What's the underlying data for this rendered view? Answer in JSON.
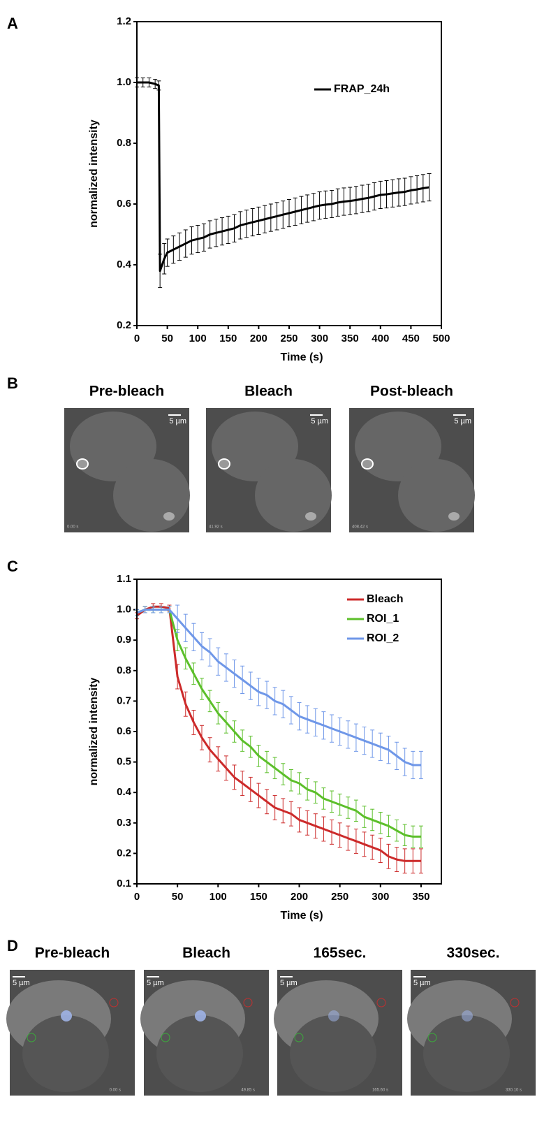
{
  "chart_data": [
    {
      "type": "line",
      "panel_label": "A",
      "xlabel": "Time (s)",
      "ylabel": "normalized intensity",
      "xlim": [
        0,
        500
      ],
      "xticks": [
        0,
        50,
        100,
        150,
        200,
        250,
        300,
        350,
        400,
        450,
        500
      ],
      "ylim": [
        0.2,
        1.2
      ],
      "yticks": [
        0.2,
        0.4,
        0.6,
        0.8,
        {
          "value": 1,
          "label": "1.0"
        },
        1.2
      ],
      "legend": "upper right",
      "grid": false,
      "x": [
        0,
        10,
        20,
        30,
        36,
        38,
        45,
        50,
        60,
        70,
        80,
        90,
        100,
        110,
        120,
        130,
        140,
        150,
        160,
        170,
        180,
        190,
        200,
        210,
        220,
        230,
        240,
        250,
        260,
        270,
        280,
        290,
        300,
        310,
        320,
        330,
        340,
        350,
        360,
        370,
        380,
        390,
        400,
        410,
        420,
        430,
        440,
        450,
        460,
        470,
        480
      ],
      "series": [
        {
          "name": "FRAP_24h",
          "color": "#000000",
          "values": [
            1.0,
            1.0,
            1.0,
            0.995,
            0.99,
            0.38,
            0.42,
            0.44,
            0.45,
            0.46,
            0.47,
            0.48,
            0.485,
            0.49,
            0.5,
            0.505,
            0.51,
            0.515,
            0.52,
            0.53,
            0.535,
            0.54,
            0.545,
            0.55,
            0.555,
            0.56,
            0.565,
            0.57,
            0.575,
            0.58,
            0.585,
            0.59,
            0.595,
            0.598,
            0.6,
            0.605,
            0.608,
            0.61,
            0.613,
            0.617,
            0.62,
            0.625,
            0.63,
            0.632,
            0.635,
            0.638,
            0.64,
            0.645,
            0.648,
            0.652,
            0.655
          ],
          "errors": [
            0.015,
            0.015,
            0.015,
            0.015,
            0.015,
            0.055,
            0.05,
            0.045,
            0.045,
            0.045,
            0.045,
            0.045,
            0.045,
            0.045,
            0.045,
            0.045,
            0.045,
            0.045,
            0.045,
            0.045,
            0.045,
            0.045,
            0.045,
            0.045,
            0.045,
            0.045,
            0.045,
            0.045,
            0.045,
            0.045,
            0.045,
            0.045,
            0.045,
            0.045,
            0.045,
            0.045,
            0.045,
            0.045,
            0.045,
            0.045,
            0.045,
            0.045,
            0.045,
            0.045,
            0.045,
            0.045,
            0.045,
            0.045,
            0.045,
            0.045,
            0.045
          ]
        }
      ]
    },
    {
      "type": "line",
      "panel_label": "C",
      "xlabel": "Time (s)",
      "ylabel": "normalized intensity",
      "xlim": [
        0,
        375
      ],
      "xticks": [
        0,
        50,
        100,
        150,
        200,
        250,
        300,
        350
      ],
      "ylim": [
        0.1,
        1.1
      ],
      "yticks": [
        0.1,
        0.2,
        0.3,
        0.4,
        0.5,
        0.6,
        0.7,
        0.8,
        0.9,
        {
          "value": 1,
          "label": "1.0"
        },
        1.1
      ],
      "legend": "upper right",
      "grid": false,
      "x": [
        0,
        10,
        20,
        30,
        40,
        50,
        60,
        70,
        80,
        90,
        100,
        110,
        120,
        130,
        140,
        150,
        160,
        170,
        180,
        190,
        200,
        210,
        220,
        230,
        240,
        250,
        260,
        270,
        280,
        290,
        300,
        310,
        320,
        330,
        340,
        350
      ],
      "series": [
        {
          "name": "Bleach",
          "color": "#cc2a2a",
          "values": [
            0.98,
            1.0,
            1.01,
            1.01,
            1.005,
            0.78,
            0.69,
            0.63,
            0.58,
            0.54,
            0.51,
            0.48,
            0.45,
            0.43,
            0.41,
            0.39,
            0.37,
            0.35,
            0.34,
            0.33,
            0.31,
            0.3,
            0.29,
            0.28,
            0.27,
            0.26,
            0.25,
            0.24,
            0.23,
            0.22,
            0.21,
            0.19,
            0.18,
            0.175,
            0.175,
            0.175
          ],
          "errors": [
            0.01,
            0.01,
            0.01,
            0.01,
            0.01,
            0.04,
            0.04,
            0.04,
            0.04,
            0.04,
            0.04,
            0.04,
            0.04,
            0.04,
            0.04,
            0.04,
            0.04,
            0.04,
            0.04,
            0.04,
            0.04,
            0.04,
            0.04,
            0.04,
            0.04,
            0.04,
            0.04,
            0.04,
            0.04,
            0.04,
            0.04,
            0.04,
            0.04,
            0.04,
            0.04,
            0.04
          ]
        },
        {
          "name": "ROI_1",
          "color": "#5cbf2a",
          "values": [
            0.99,
            1.0,
            1.0,
            1.0,
            1.0,
            0.9,
            0.84,
            0.79,
            0.74,
            0.7,
            0.66,
            0.63,
            0.6,
            0.57,
            0.55,
            0.52,
            0.5,
            0.48,
            0.46,
            0.44,
            0.43,
            0.41,
            0.4,
            0.38,
            0.37,
            0.36,
            0.35,
            0.34,
            0.32,
            0.31,
            0.3,
            0.29,
            0.275,
            0.26,
            0.255,
            0.255
          ],
          "errors": [
            0.01,
            0.01,
            0.01,
            0.01,
            0.01,
            0.035,
            0.035,
            0.035,
            0.035,
            0.035,
            0.035,
            0.035,
            0.035,
            0.035,
            0.035,
            0.035,
            0.035,
            0.035,
            0.035,
            0.035,
            0.035,
            0.035,
            0.035,
            0.035,
            0.035,
            0.035,
            0.035,
            0.035,
            0.035,
            0.035,
            0.035,
            0.035,
            0.035,
            0.035,
            0.035,
            0.035
          ]
        },
        {
          "name": "ROI_2",
          "color": "#6f97e8",
          "values": [
            0.99,
            1.0,
            1.0,
            1.0,
            1.0,
            0.97,
            0.94,
            0.91,
            0.88,
            0.86,
            0.83,
            0.81,
            0.79,
            0.77,
            0.75,
            0.73,
            0.72,
            0.7,
            0.69,
            0.67,
            0.65,
            0.64,
            0.63,
            0.62,
            0.61,
            0.6,
            0.59,
            0.58,
            0.57,
            0.56,
            0.55,
            0.54,
            0.52,
            0.5,
            0.49,
            0.49
          ],
          "errors": [
            0.01,
            0.01,
            0.01,
            0.01,
            0.01,
            0.045,
            0.045,
            0.045,
            0.045,
            0.045,
            0.045,
            0.045,
            0.045,
            0.045,
            0.045,
            0.045,
            0.045,
            0.045,
            0.045,
            0.045,
            0.045,
            0.045,
            0.045,
            0.045,
            0.045,
            0.045,
            0.045,
            0.045,
            0.045,
            0.045,
            0.045,
            0.045,
            0.045,
            0.045,
            0.045,
            0.045
          ]
        }
      ]
    }
  ],
  "image_panels": [
    {
      "panel_label": "B",
      "images": [
        {
          "title": "Pre-bleach",
          "scale": "5 µm",
          "time": "0.00 s"
        },
        {
          "title": "Bleach",
          "scale": "5 µm",
          "time": "41.92 s"
        },
        {
          "title": "Post-bleach",
          "scale": "5 µm",
          "time": "408.42 s"
        }
      ]
    },
    {
      "panel_label": "D",
      "images": [
        {
          "title": "Pre-bleach",
          "scale": "5 µm",
          "time": "0.00 s"
        },
        {
          "title": "Bleach",
          "scale": "5 µm",
          "time": "49.85 s"
        },
        {
          "title": "165sec.",
          "scale": "5 µm",
          "time": "165.60 s"
        },
        {
          "title": "330sec.",
          "scale": "5 µm",
          "time": "330.10 s"
        }
      ]
    }
  ]
}
